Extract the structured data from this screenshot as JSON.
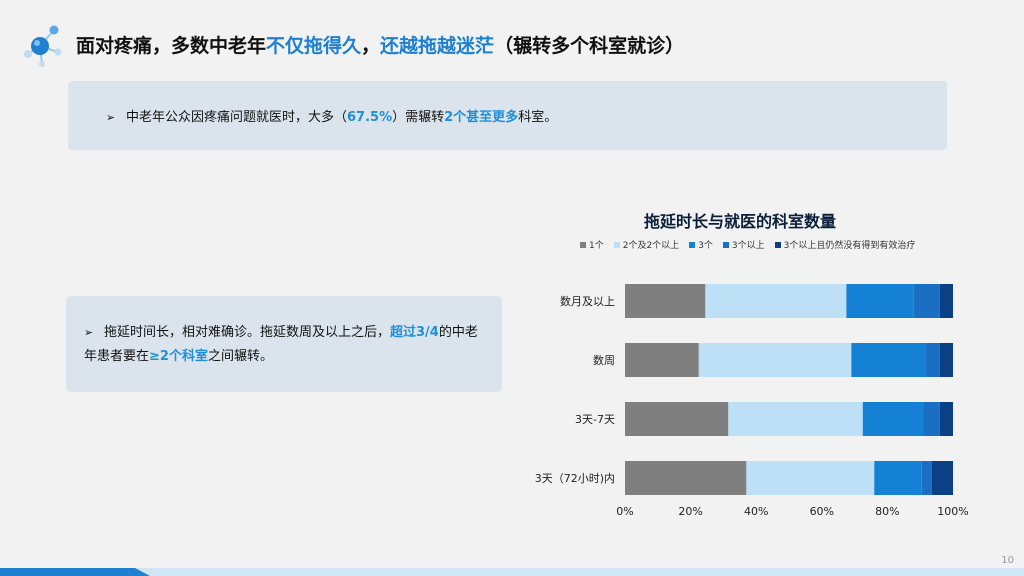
{
  "header": {
    "title_part1": "面对疼痛，多数中老年",
    "title_hl1": "不仅拖得久",
    "title_part2": "，",
    "title_hl2": "还越拖越迷茫",
    "title_part3": "（辗转多个科室就诊）"
  },
  "bullet1": {
    "arrow": "➢",
    "text1": "中老年公众因疼痛问题就医时，大多（",
    "pct": "67.5%",
    "text2": "）需辗转",
    "hl": "2个甚至更多",
    "text3": "科室。"
  },
  "bullet2": {
    "arrow": "➢",
    "text1": "拖延时间长，相对难确诊。拖延数周及以上之后，",
    "hl1": "超过3/4",
    "text2": "的中老年患者要在",
    "hl2": "≥2个科室",
    "text3": "之间辗转。"
  },
  "page_number": "10",
  "chart_data": {
    "type": "bar",
    "orientation": "horizontal",
    "stacked": "percent",
    "title": "拖延时长与就医的科室数量",
    "categories": [
      "数月及以上",
      "数周",
      "3天-7天",
      "3天（72小时)内"
    ],
    "xlim": [
      0,
      100
    ],
    "xticks": [
      "0%",
      "20%",
      "40%",
      "60%",
      "80%",
      "100%"
    ],
    "legend_position": "top",
    "grid": false,
    "series": [
      {
        "name": "1个",
        "color": "#7f7f7f",
        "values": [
          24.5,
          22.5,
          31.5,
          37
        ]
      },
      {
        "name": "2个及2个以上",
        "color": "#bde0f7",
        "values": [
          43,
          46.5,
          41,
          39
        ]
      },
      {
        "name": "3个",
        "color": "#1581d4",
        "values": [
          20.5,
          22.5,
          18.5,
          14.5
        ]
      },
      {
        "name": "3个以上",
        "color": "#1a6fc2",
        "values": [
          8,
          4.5,
          5,
          3
        ]
      },
      {
        "name": "3个以上且仍然没有得到有效治疗",
        "color": "#0b3f86",
        "values": [
          4,
          4,
          4,
          6.5
        ]
      }
    ]
  }
}
